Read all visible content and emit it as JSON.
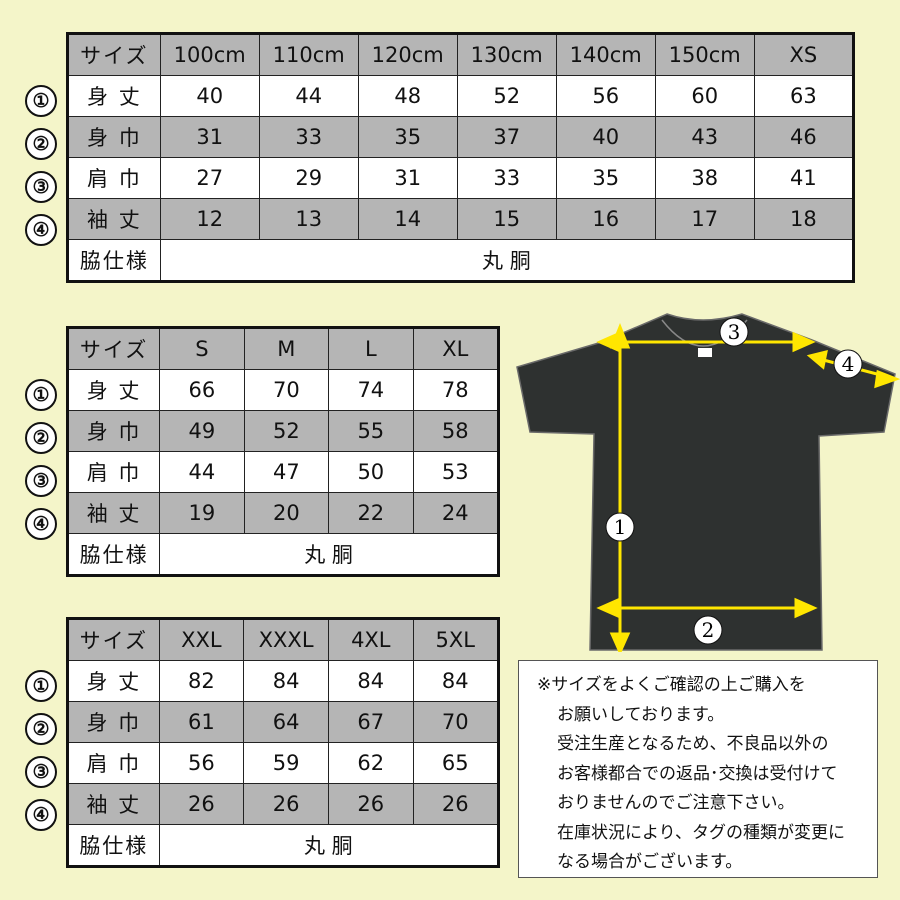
{
  "colors": {
    "background": "#f4f5c9",
    "shaded_row": "#b5b5b5",
    "arrow": "#ffe600",
    "shirt": "#2e3130"
  },
  "markers": [
    "①",
    "②",
    "③",
    "④"
  ],
  "tables": [
    {
      "header": "サイズ",
      "sizes": [
        "100cm",
        "110cm",
        "120cm",
        "130cm",
        "140cm",
        "150cm",
        "XS"
      ],
      "rows": [
        {
          "label": "身 丈",
          "values": [
            "40",
            "44",
            "48",
            "52",
            "56",
            "60",
            "63"
          ]
        },
        {
          "label": "身 巾",
          "values": [
            "31",
            "33",
            "35",
            "37",
            "40",
            "43",
            "46"
          ]
        },
        {
          "label": "肩 巾",
          "values": [
            "27",
            "29",
            "31",
            "33",
            "35",
            "38",
            "41"
          ]
        },
        {
          "label": "袖 丈",
          "values": [
            "12",
            "13",
            "14",
            "15",
            "16",
            "17",
            "18"
          ]
        }
      ],
      "side_label": "脇仕様",
      "side_value": "丸 胴"
    },
    {
      "header": "サイズ",
      "sizes": [
        "S",
        "M",
        "L",
        "XL"
      ],
      "rows": [
        {
          "label": "身 丈",
          "values": [
            "66",
            "70",
            "74",
            "78"
          ]
        },
        {
          "label": "身 巾",
          "values": [
            "49",
            "52",
            "55",
            "58"
          ]
        },
        {
          "label": "肩 巾",
          "values": [
            "44",
            "47",
            "50",
            "53"
          ]
        },
        {
          "label": "袖 丈",
          "values": [
            "19",
            "20",
            "22",
            "24"
          ]
        }
      ],
      "side_label": "脇仕様",
      "side_value": "丸 胴"
    },
    {
      "header": "サイズ",
      "sizes": [
        "XXL",
        "XXXL",
        "4XL",
        "5XL"
      ],
      "rows": [
        {
          "label": "身 丈",
          "values": [
            "82",
            "84",
            "84",
            "84"
          ]
        },
        {
          "label": "身 巾",
          "values": [
            "61",
            "64",
            "67",
            "70"
          ]
        },
        {
          "label": "肩 巾",
          "values": [
            "56",
            "59",
            "62",
            "65"
          ]
        },
        {
          "label": "袖 丈",
          "values": [
            "26",
            "26",
            "26",
            "26"
          ]
        }
      ],
      "side_label": "脇仕様",
      "side_value": "丸 胴"
    }
  ],
  "diagram": {
    "labels": [
      "1",
      "2",
      "3",
      "4"
    ]
  },
  "note": {
    "lines": [
      "※サイズをよくご確認の上ご購入を",
      "お願いしております。",
      "受注生産となるため、不良品以外の",
      "お客様都合での返品･交換は受付けて",
      "おりませんのでご注意下さい。",
      "在庫状況により、タグの種類が変更に",
      "なる場合がございます。"
    ]
  }
}
